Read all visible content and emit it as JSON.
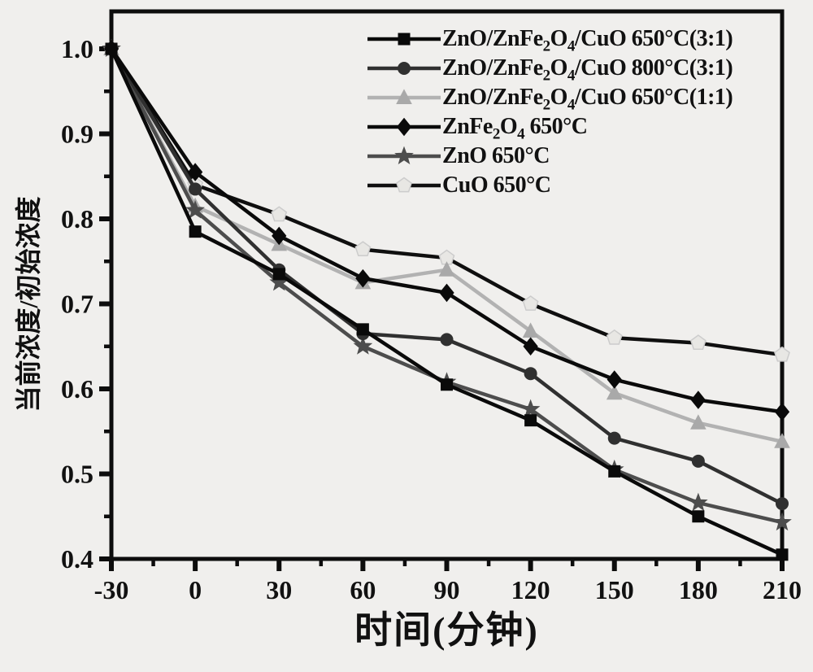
{
  "figure": {
    "background": "#f0efed",
    "axis_color": "#0d0d0d"
  },
  "chart_data": {
    "type": "line",
    "title": "",
    "xlabel": "时间(分钟)",
    "ylabel": "当前浓度/初始浓度",
    "grid": false,
    "legend_position": "upper right inside plot",
    "xlim": [
      -30,
      210
    ],
    "ylim": [
      0.4,
      1.045
    ],
    "x_ticks": [
      -30,
      0,
      30,
      60,
      90,
      120,
      150,
      180,
      210
    ],
    "x_tick_labels": [
      "-30",
      "0",
      "30",
      "60",
      "90",
      "120",
      "150",
      "180",
      "210"
    ],
    "x_minor_ticks": [
      -15,
      15,
      45,
      75,
      105,
      135,
      165,
      195
    ],
    "y_ticks": [
      0.4,
      0.5,
      0.6,
      0.7,
      0.8,
      0.9,
      1.0
    ],
    "y_tick_labels": [
      "0.4",
      "0.5",
      "0.6",
      "0.7",
      "0.8",
      "0.9",
      "1.0"
    ],
    "y_minor_ticks": [
      0.45,
      0.55,
      0.65,
      0.75,
      0.85,
      0.95
    ],
    "x": [
      -30,
      0,
      30,
      60,
      90,
      120,
      150,
      180,
      210
    ],
    "series": [
      {
        "name": "ZnO/ZnFe₂O₄/CuO 650°C(3:1)",
        "marker": "square",
        "line_color": "#0a0a0a",
        "marker_fill": "#0a0a0a",
        "marker_stroke": "#0a0a0a",
        "values": [
          1.0,
          0.785,
          0.735,
          0.67,
          0.605,
          0.563,
          0.503,
          0.45,
          0.405
        ]
      },
      {
        "name": "ZnO/ZnFe₂O₄/CuO 800°C(3:1)",
        "marker": "circle",
        "line_color": "#303030",
        "marker_fill": "#303030",
        "marker_stroke": "#303030",
        "values": [
          1.0,
          0.835,
          0.74,
          0.665,
          0.658,
          0.618,
          0.542,
          0.515,
          0.465
        ]
      },
      {
        "name": "ZnO/ZnFe₂O₄/CuO 650°C(1:1)",
        "marker": "triangle",
        "line_color": "#b2b2b2",
        "marker_fill": "#a9a9a9",
        "marker_stroke": "#a9a9a9",
        "values": [
          1.0,
          0.815,
          0.77,
          0.725,
          0.74,
          0.668,
          0.595,
          0.56,
          0.538
        ]
      },
      {
        "name": "ZnFe₂O₄ 650°C",
        "marker": "diamond",
        "line_color": "#0a0a0a",
        "marker_fill": "#0a0a0a",
        "marker_stroke": "#0a0a0a",
        "values": [
          1.0,
          0.855,
          0.78,
          0.73,
          0.713,
          0.65,
          0.611,
          0.587,
          0.573
        ]
      },
      {
        "name": "ZnO 650°C",
        "marker": "star",
        "line_color": "#4d4d4d",
        "marker_fill": "#4d4d4d",
        "marker_stroke": "#4d4d4d",
        "values": [
          1.0,
          0.81,
          0.725,
          0.65,
          0.608,
          0.576,
          0.505,
          0.466,
          0.443
        ]
      },
      {
        "name": "CuO 650°C",
        "marker": "pentagon",
        "line_color": "#0f0f0f",
        "marker_fill": "#e8e7e4",
        "marker_stroke": "#cccccc",
        "values": [
          1.0,
          0.84,
          0.805,
          0.764,
          0.754,
          0.7,
          0.66,
          0.654,
          0.64
        ]
      }
    ]
  }
}
